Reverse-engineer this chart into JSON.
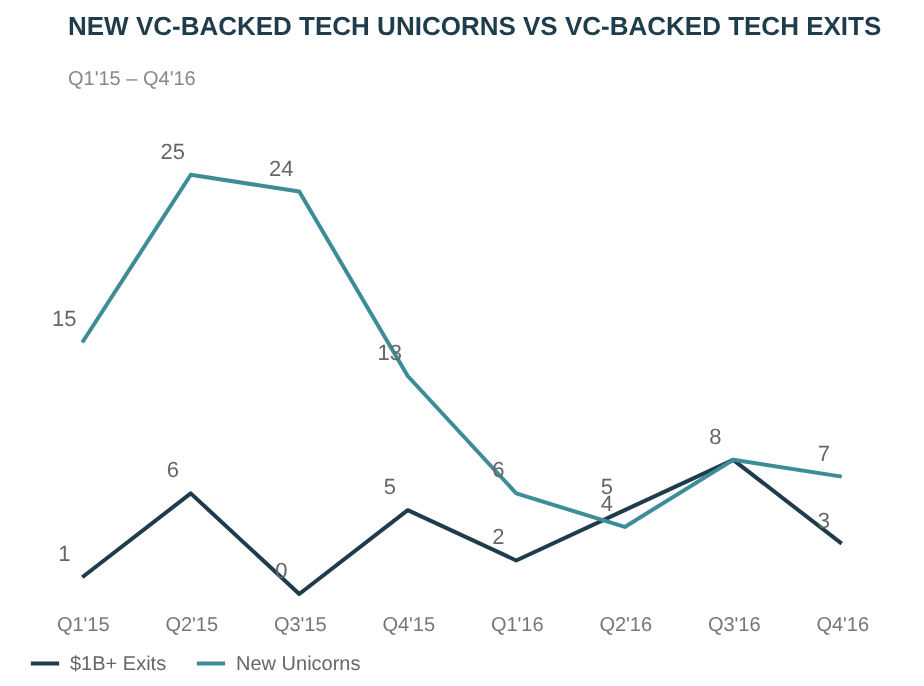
{
  "chart_data": {
    "type": "line",
    "title": "NEW VC-BACKED TECH UNICORNS VS VC-BACKED TECH EXITS",
    "subtitle": "Q1'15 – Q4'16",
    "categories": [
      "Q1'15",
      "Q2'15",
      "Q3'15",
      "Q4'15",
      "Q1'16",
      "Q2'16",
      "Q3'16",
      "Q4'16"
    ],
    "series": [
      {
        "name": "$1B+ Exits",
        "color": "#1f3c4c",
        "values": [
          1,
          6,
          0,
          5,
          2,
          5,
          8,
          3
        ],
        "value_labels": [
          "1",
          "6",
          "0",
          "5",
          "2",
          "5",
          "8",
          "3"
        ]
      },
      {
        "name": "New Unicorns",
        "color": "#3d8c98",
        "values": [
          15,
          25,
          24,
          13,
          6,
          4,
          8,
          7
        ],
        "value_labels": [
          "15",
          "25",
          "24",
          "13",
          "6",
          "4",
          null,
          "7"
        ]
      }
    ],
    "legend": "bottom left",
    "grid": false,
    "marker": "none"
  }
}
